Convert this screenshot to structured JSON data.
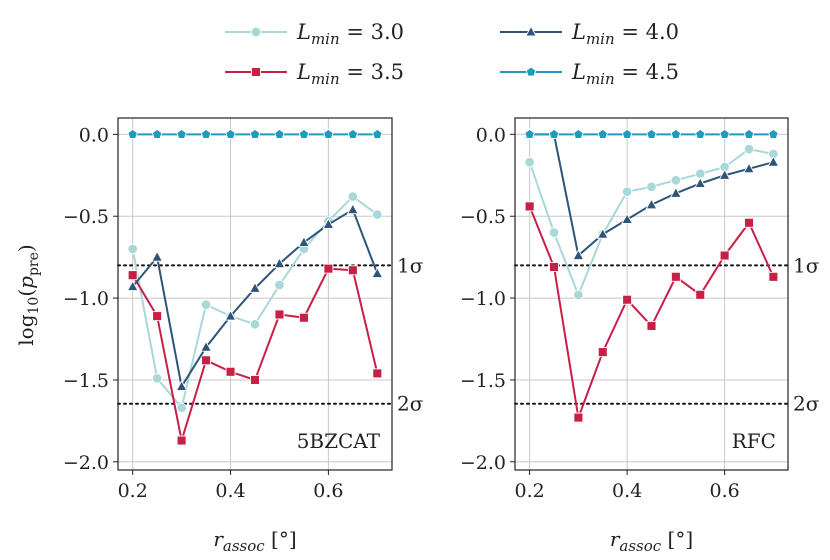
{
  "chart_data": {
    "type": "line",
    "ylabel": "log10(p_pre)",
    "xlabel": "r_assoc [°]",
    "xlim": [
      0.17,
      0.73
    ],
    "ylim": [
      -2.05,
      0.1
    ],
    "xticks": [
      "0.2",
      "0.4",
      "0.6"
    ],
    "xtick_values": [
      0.2,
      0.4,
      0.6
    ],
    "yticks": [
      "0.0",
      "−0.5",
      "−1.0",
      "−1.5",
      "−2.0"
    ],
    "ytick_values": [
      0.0,
      -0.5,
      -1.0,
      -1.5,
      -2.0
    ],
    "sigma_lines": [
      {
        "label": "1σ",
        "y": -0.8
      },
      {
        "label": "2σ",
        "y": -1.645
      }
    ],
    "legend": {
      "placement": "top",
      "entries": [
        {
          "name": "L_min = 3.0",
          "color": "#a8d8d8",
          "marker": "circle"
        },
        {
          "name": "L_min = 3.5",
          "color": "#c81f47",
          "marker": "square"
        },
        {
          "name": "L_min = 4.0",
          "color": "#2e5478",
          "marker": "triangle"
        },
        {
          "name": "L_min = 4.5",
          "color": "#1f9cbc",
          "marker": "pentagon"
        }
      ]
    },
    "panels": [
      {
        "name": "5BZCAT",
        "x": [
          0.2,
          0.25,
          0.3,
          0.35,
          0.4,
          0.45,
          0.5,
          0.55,
          0.6,
          0.65,
          0.7
        ],
        "series": [
          {
            "name": "L_min = 3.0",
            "values": [
              -0.7,
              -1.49,
              -1.67,
              -1.04,
              -1.11,
              -1.16,
              -0.92,
              -0.7,
              -0.53,
              -0.38,
              -0.49
            ]
          },
          {
            "name": "L_min = 3.5",
            "values": [
              -0.86,
              -1.11,
              -1.87,
              -1.38,
              -1.45,
              -1.5,
              -1.1,
              -1.12,
              -0.82,
              -0.83,
              -1.46
            ]
          },
          {
            "name": "L_min = 4.0",
            "values": [
              -0.93,
              -0.75,
              -1.54,
              -1.3,
              -1.11,
              -0.94,
              -0.79,
              -0.66,
              -0.55,
              -0.46,
              -0.85
            ]
          },
          {
            "name": "L_min = 4.5",
            "values": [
              0.0,
              0.0,
              0.0,
              0.0,
              0.0,
              0.0,
              0.0,
              0.0,
              0.0,
              0.0,
              0.0
            ]
          }
        ]
      },
      {
        "name": "RFC",
        "x": [
          0.2,
          0.25,
          0.3,
          0.35,
          0.4,
          0.45,
          0.5,
          0.55,
          0.6,
          0.65,
          0.7
        ],
        "series": [
          {
            "name": "L_min = 3.0",
            "values": [
              -0.17,
              -0.6,
              -0.98,
              -0.61,
              -0.35,
              -0.32,
              -0.28,
              -0.24,
              -0.2,
              -0.09,
              -0.12
            ]
          },
          {
            "name": "L_min = 3.5",
            "values": [
              -0.44,
              -0.81,
              -1.73,
              -1.33,
              -1.01,
              -1.17,
              -0.87,
              -0.98,
              -0.74,
              -0.54,
              -0.87
            ]
          },
          {
            "name": "L_min = 4.0",
            "values": [
              0.0,
              0.0,
              -0.74,
              -0.61,
              -0.52,
              -0.43,
              -0.36,
              -0.3,
              -0.25,
              -0.21,
              -0.17
            ]
          },
          {
            "name": "L_min = 4.5",
            "values": [
              0.0,
              0.0,
              0.0,
              0.0,
              0.0,
              0.0,
              0.0,
              0.0,
              0.0,
              0.0,
              0.0
            ]
          }
        ]
      }
    ]
  }
}
